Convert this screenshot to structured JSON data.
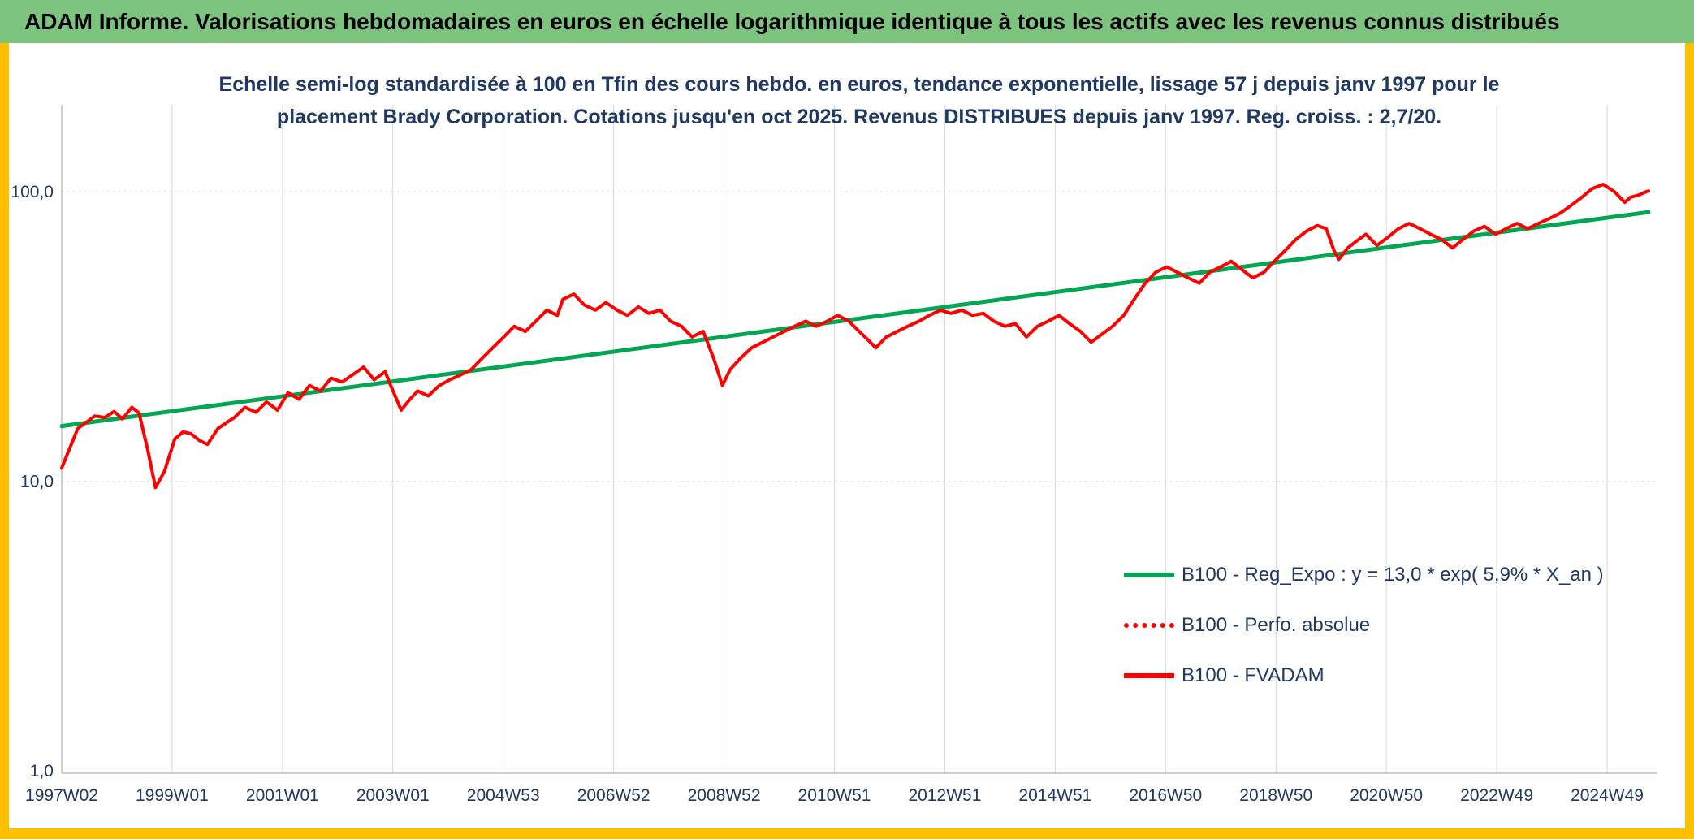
{
  "header": {
    "title": "ADAM Informe. Valorisations hebdomadaires en euros en échelle logarithmique identique à tous les actifs avec les revenus connus distribués"
  },
  "accents": {
    "header_bg": "#7CC47D",
    "edge_color": "#FFC000"
  },
  "chart_data": {
    "type": "line",
    "title_line1": "Echelle semi-log standardisée à 100 en Tfin des cours hebdo. en euros, tendance exponentielle, lissage 57 j depuis janv 1997 pour le",
    "title_line2": "placement Brady Corporation. Cotations jusqu'en oct 2025. Revenus DISTRIBUES depuis janv 1997. Reg. croiss. : 2,7/20.",
    "y_scale": "log",
    "ylim": [
      1,
      200
    ],
    "x_end_year": 28.75,
    "y_ticks": [
      {
        "value": 100,
        "label": "100,0"
      },
      {
        "value": 10,
        "label": "10,0"
      },
      {
        "value": 1,
        "label": "1,0"
      }
    ],
    "x_ticks": [
      {
        "year": 0,
        "label": "1997W02"
      },
      {
        "year": 2,
        "label": "1999W01"
      },
      {
        "year": 4,
        "label": "2001W01"
      },
      {
        "year": 6,
        "label": "2003W01"
      },
      {
        "year": 8,
        "label": "2004W53"
      },
      {
        "year": 10,
        "label": "2006W52"
      },
      {
        "year": 12,
        "label": "2008W52"
      },
      {
        "year": 14,
        "label": "2010W51"
      },
      {
        "year": 16,
        "label": "2012W51"
      },
      {
        "year": 18,
        "label": "2014W51"
      },
      {
        "year": 20,
        "label": "2016W50"
      },
      {
        "year": 22,
        "label": "2018W50"
      },
      {
        "year": 24,
        "label": "2020W50"
      },
      {
        "year": 26,
        "label": "2022W49"
      },
      {
        "year": 28,
        "label": "2024W49"
      }
    ],
    "grid": {
      "vertical": true,
      "horizontal_dotted_at": [
        10,
        100
      ]
    },
    "colors": {
      "trend": "#00A651",
      "series": "#FF0000",
      "grid": "#D9D9D9",
      "axis": "#BFBFBF",
      "text": "#1F3864"
    },
    "legend": {
      "position": "center-right",
      "items": [
        {
          "label": "B100 - Reg_Expo : y = 13,0 * exp( 5,9% *  X_an )",
          "color": "#00A651",
          "style": "solid"
        },
        {
          "label": "B100 - Perfo. absolue",
          "color": "#FF0000",
          "style": "dotted"
        },
        {
          "label": "B100 - FVADAM",
          "color": "#FF0000",
          "style": "solid"
        }
      ]
    },
    "series": [
      {
        "name": "B100 - Reg_Expo",
        "color": "#00A651",
        "style": "solid",
        "width": 5,
        "x": [
          0,
          28.75
        ],
        "values": [
          15.5,
          85
        ]
      },
      {
        "name": "B100 - Perfo. absolue",
        "color": "#FF0000",
        "style": "dotted",
        "width": 4,
        "note": "not separately visible in the chart; curve coincides with B100 - FVADAM"
      },
      {
        "name": "B100 - FVADAM",
        "color": "#FF0000",
        "style": "solid",
        "width": 4,
        "x": [
          0.0,
          0.29,
          0.45,
          0.6,
          0.78,
          0.95,
          1.1,
          1.27,
          1.4,
          1.56,
          1.7,
          1.8,
          1.86,
          2.05,
          2.2,
          2.34,
          2.5,
          2.64,
          2.83,
          3.0,
          3.13,
          3.32,
          3.52,
          3.71,
          3.91,
          4.1,
          4.3,
          4.49,
          4.69,
          4.88,
          5.08,
          5.27,
          5.47,
          5.66,
          5.86,
          5.96,
          6.15,
          6.31,
          6.45,
          6.64,
          6.84,
          7.03,
          7.23,
          7.42,
          7.62,
          7.81,
          8.01,
          8.2,
          8.4,
          8.59,
          8.79,
          8.98,
          9.08,
          9.28,
          9.47,
          9.67,
          9.86,
          10.06,
          10.25,
          10.45,
          10.64,
          10.84,
          11.03,
          11.23,
          11.42,
          11.62,
          11.81,
          11.97,
          12.11,
          12.3,
          12.5,
          12.7,
          12.89,
          13.09,
          13.28,
          13.48,
          13.67,
          13.87,
          14.06,
          14.26,
          14.45,
          14.65,
          14.75,
          14.94,
          15.14,
          15.33,
          15.53,
          15.72,
          15.92,
          16.11,
          16.31,
          16.5,
          16.7,
          16.89,
          17.09,
          17.28,
          17.48,
          17.68,
          17.87,
          18.07,
          18.26,
          18.46,
          18.65,
          18.85,
          19.04,
          19.24,
          19.43,
          19.63,
          19.82,
          20.02,
          20.21,
          20.41,
          20.61,
          20.8,
          21.0,
          21.19,
          21.39,
          21.58,
          21.78,
          21.97,
          22.17,
          22.36,
          22.56,
          22.75,
          22.91,
          23.05,
          23.14,
          23.3,
          23.44,
          23.63,
          23.83,
          24.02,
          24.22,
          24.41,
          24.61,
          24.8,
          25.0,
          25.2,
          25.39,
          25.59,
          25.78,
          25.98,
          26.17,
          26.37,
          26.56,
          26.76,
          26.95,
          27.15,
          27.34,
          27.54,
          27.73,
          27.93,
          28.13,
          28.32,
          28.42,
          28.57,
          28.71,
          28.75
        ],
        "values": [
          11.1,
          15.2,
          16.0,
          16.8,
          16.6,
          17.4,
          16.4,
          18.0,
          17.2,
          12.8,
          9.5,
          10.3,
          10.8,
          14.0,
          14.8,
          14.6,
          13.8,
          13.4,
          15.2,
          16.0,
          16.6,
          18.0,
          17.3,
          18.8,
          17.6,
          20.2,
          19.2,
          21.4,
          20.5,
          22.7,
          22.0,
          23.3,
          24.8,
          22.4,
          23.9,
          21.4,
          17.6,
          19.2,
          20.5,
          19.7,
          21.4,
          22.4,
          23.3,
          24.3,
          26.6,
          28.9,
          31.5,
          34.3,
          32.9,
          35.7,
          39.0,
          37.4,
          42.5,
          44.3,
          40.6,
          39.0,
          41.4,
          39.0,
          37.4,
          40.0,
          38.0,
          39.0,
          35.7,
          34.3,
          31.5,
          32.9,
          26.6,
          21.4,
          24.3,
          26.6,
          28.9,
          30.2,
          31.5,
          32.9,
          34.3,
          35.7,
          34.3,
          35.7,
          37.4,
          35.7,
          32.9,
          30.2,
          28.9,
          31.5,
          32.9,
          34.3,
          35.7,
          37.4,
          39.0,
          38.0,
          39.0,
          37.4,
          38.0,
          35.7,
          34.3,
          35.0,
          31.5,
          34.3,
          35.7,
          37.4,
          35.0,
          32.9,
          30.2,
          32.2,
          34.3,
          37.4,
          42.5,
          48.3,
          52.7,
          55.0,
          52.7,
          50.4,
          48.3,
          52.7,
          55.0,
          57.5,
          53.7,
          50.4,
          52.7,
          57.5,
          62.7,
          68.4,
          73.2,
          76.4,
          74.5,
          62.7,
          58.4,
          63.9,
          67.1,
          71.3,
          65.2,
          69.4,
          74.5,
          77.7,
          74.5,
          71.3,
          68.4,
          63.9,
          68.4,
          73.2,
          75.9,
          71.3,
          74.5,
          77.7,
          74.5,
          77.7,
          80.7,
          84.3,
          89.4,
          95.6,
          102.5,
          106.0,
          100.0,
          91.8,
          95.6,
          97.3,
          100.0,
          100.5
        ]
      }
    ]
  }
}
